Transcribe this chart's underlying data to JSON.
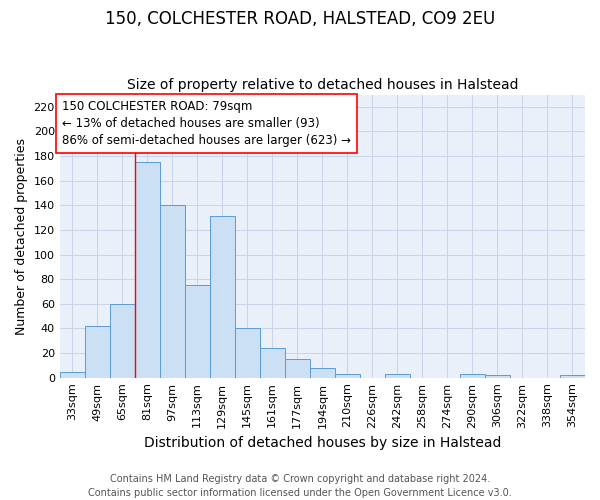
{
  "title1": "150, COLCHESTER ROAD, HALSTEAD, CO9 2EU",
  "title2": "Size of property relative to detached houses in Halstead",
  "xlabel": "Distribution of detached houses by size in Halstead",
  "ylabel": "Number of detached properties",
  "footer1": "Contains HM Land Registry data © Crown copyright and database right 2024.",
  "footer2": "Contains public sector information licensed under the Open Government Licence v3.0.",
  "annotation_line1": "150 COLCHESTER ROAD: 79sqm",
  "annotation_line2": "← 13% of detached houses are smaller (93)",
  "annotation_line3": "86% of semi-detached houses are larger (623) →",
  "bar_labels": [
    "33sqm",
    "49sqm",
    "65sqm",
    "81sqm",
    "97sqm",
    "113sqm",
    "129sqm",
    "145sqm",
    "161sqm",
    "177sqm",
    "194sqm",
    "210sqm",
    "226sqm",
    "242sqm",
    "258sqm",
    "274sqm",
    "290sqm",
    "306sqm",
    "322sqm",
    "338sqm",
    "354sqm"
  ],
  "bar_values": [
    5,
    42,
    60,
    175,
    140,
    75,
    131,
    40,
    24,
    15,
    8,
    3,
    0,
    3,
    0,
    0,
    3,
    2,
    0,
    0,
    2
  ],
  "bar_color": "#cce0f5",
  "bar_edgecolor": "#5b9bd5",
  "grid_color": "#c8d4e8",
  "background_color": "#eaf0fa",
  "red_line_x": 2.5,
  "ylim": [
    0,
    230
  ],
  "yticks": [
    0,
    20,
    40,
    60,
    80,
    100,
    120,
    140,
    160,
    180,
    200,
    220
  ],
  "title1_fontsize": 12,
  "title2_fontsize": 10,
  "xlabel_fontsize": 10,
  "ylabel_fontsize": 9,
  "tick_fontsize": 8,
  "annotation_fontsize": 8.5,
  "footer_fontsize": 7
}
